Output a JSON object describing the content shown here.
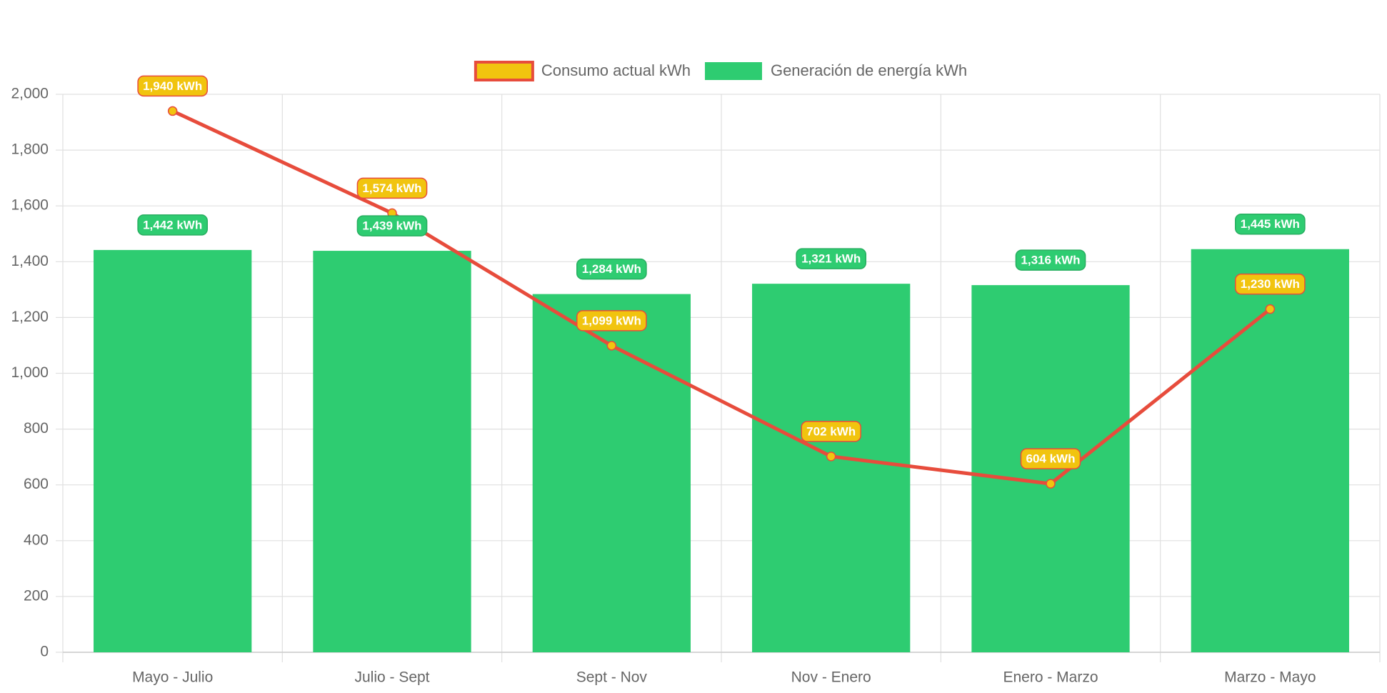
{
  "chart_data": {
    "type": "bar",
    "categories": [
      "Mayo - Julio",
      "Julio - Sept",
      "Sept - Nov",
      "Nov - Enero",
      "Enero - Marzo",
      "Marzo - Mayo"
    ],
    "series": [
      {
        "name": "Consumo actual kWh",
        "type": "line",
        "color": "#e74c3c",
        "point_color": "#f1c40f",
        "values": [
          1940,
          1574,
          1099,
          702,
          604,
          1230
        ],
        "value_labels": [
          "1,940 kWh",
          "1,574 kWh",
          "1,099 kWh",
          "702 kWh",
          "604 kWh",
          "1,230 kWh"
        ]
      },
      {
        "name": "Generación de energía kWh",
        "type": "bar",
        "color": "#2ecc71",
        "values": [
          1442,
          1439,
          1284,
          1321,
          1316,
          1445
        ],
        "value_labels": [
          "1,442 kWh",
          "1,439 kWh",
          "1,284 kWh",
          "1,321 kWh",
          "1,316 kWh",
          "1,445 kWh"
        ]
      }
    ],
    "ylim": [
      0,
      2000
    ],
    "yticks": [
      0,
      200,
      400,
      600,
      800,
      {
        "value": 1000,
        "label": "1,000"
      },
      {
        "value": 1200,
        "label": "1,200"
      },
      {
        "value": 1400,
        "label": "1,400"
      },
      {
        "value": 1600,
        "label": "1,600"
      },
      {
        "value": 1800,
        "label": "1,800"
      },
      {
        "value": 2000,
        "label": "2,000"
      }
    ],
    "grid": true,
    "legend": "top"
  }
}
